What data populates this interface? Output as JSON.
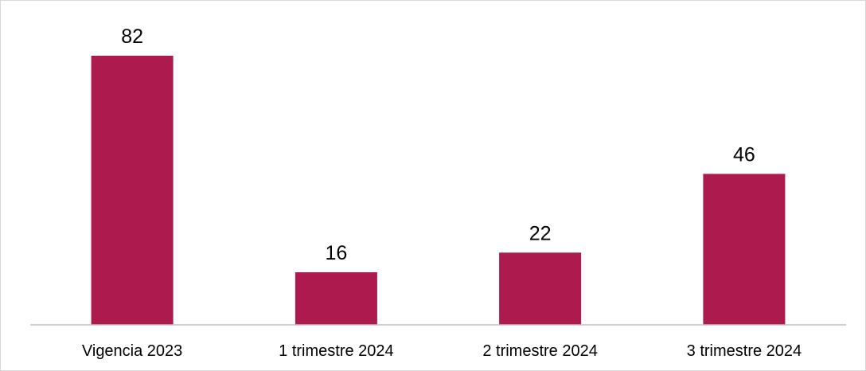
{
  "chart_data": {
    "type": "bar",
    "categories": [
      "Vigencia 2023",
      "1 trimestre 2024",
      "2 trimestre 2024",
      "3 trimestre 2024"
    ],
    "values": [
      82,
      16,
      22,
      46
    ],
    "data_labels": [
      "82",
      "16",
      "22",
      "46"
    ],
    "title": "",
    "xlabel": "",
    "ylabel": "",
    "ylim": [
      0,
      82
    ],
    "grid": false,
    "legend": "none",
    "bar_color": "#AD1A4E",
    "axis_color": "#BFBFBF",
    "border_color": "#D9D9D9"
  }
}
